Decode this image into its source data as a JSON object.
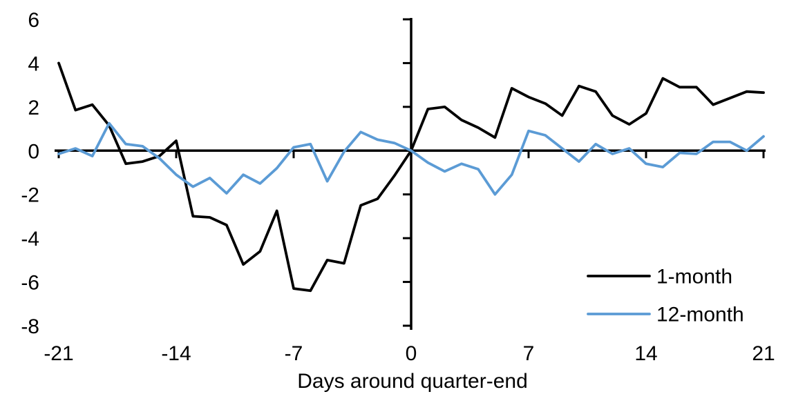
{
  "chart_data": {
    "type": "line",
    "xlabel": "Days around quarter-end",
    "xlim": [
      -21,
      21
    ],
    "ylim": [
      -8,
      6
    ],
    "grid": false,
    "legend_position": "inside-bottom-right",
    "background": "#ffffff",
    "axis_color": "#000000",
    "x_ticks": [
      -21,
      -14,
      -7,
      0,
      7,
      14,
      21
    ],
    "x_tick_labels": [
      "-21",
      "-14",
      "-7",
      "0",
      "7",
      "14",
      "21"
    ],
    "y_ticks": [
      6,
      4,
      2,
      0,
      -2,
      -4,
      -6,
      -8
    ],
    "y_tick_labels": [
      "6",
      "4",
      "2",
      "0",
      "-2",
      "-4",
      "-6",
      "-8"
    ],
    "x": [
      -21,
      -20,
      -19,
      -18,
      -17,
      -16,
      -15,
      -14,
      -13,
      -12,
      -11,
      -10,
      -9,
      -8,
      -7,
      -6,
      -5,
      -4,
      -3,
      -2,
      -1,
      0,
      1,
      2,
      3,
      4,
      5,
      6,
      7,
      8,
      9,
      10,
      11,
      12,
      13,
      14,
      15,
      16,
      17,
      18,
      19,
      20,
      21
    ],
    "series": [
      {
        "name": "1-month",
        "color": "#000000",
        "values": [
          4.0,
          1.85,
          2.1,
          1.15,
          -0.6,
          -0.5,
          -0.25,
          0.45,
          -3.0,
          -3.05,
          -3.4,
          -5.2,
          -4.6,
          -2.75,
          -6.3,
          -6.4,
          -5.0,
          -5.15,
          -2.5,
          -2.2,
          -1.15,
          0.0,
          1.9,
          2.0,
          1.4,
          1.05,
          0.6,
          2.85,
          2.45,
          2.15,
          1.6,
          2.95,
          2.7,
          1.6,
          1.2,
          1.7,
          3.3,
          2.9,
          2.9,
          2.1,
          2.4,
          2.7,
          2.65
        ]
      },
      {
        "name": "12-month",
        "color": "#5B9BD5",
        "values": [
          -0.15,
          0.1,
          -0.25,
          1.25,
          0.3,
          0.2,
          -0.35,
          -1.1,
          -1.65,
          -1.25,
          -1.95,
          -1.1,
          -1.5,
          -0.8,
          0.15,
          0.3,
          -1.4,
          -0.05,
          0.85,
          0.5,
          0.35,
          0.0,
          -0.55,
          -0.95,
          -0.6,
          -0.85,
          -2.0,
          -1.1,
          0.9,
          0.7,
          0.1,
          -0.5,
          0.3,
          -0.15,
          0.1,
          -0.6,
          -0.75,
          -0.1,
          -0.15,
          0.4,
          0.4,
          0.0,
          0.65
        ]
      }
    ]
  }
}
